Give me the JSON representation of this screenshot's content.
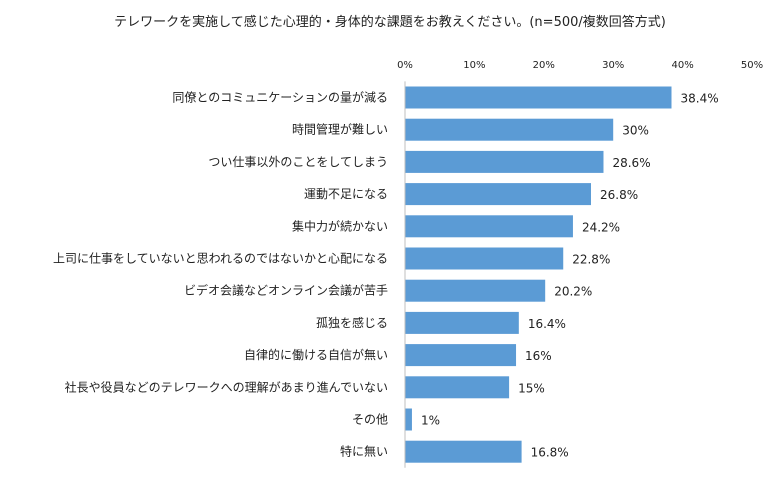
{
  "chart_data": {
    "type": "bar",
    "orientation": "horizontal",
    "title": "テレワークを実施して感じた心理的・身体的な課題をお教えください。(n=500/複数回答方式)",
    "xlim": [
      0,
      50
    ],
    "ticks": [
      {
        "value": 0,
        "label": "0%"
      },
      {
        "value": 10,
        "label": "10%"
      },
      {
        "value": 20,
        "label": "20%"
      },
      {
        "value": 30,
        "label": "30%"
      },
      {
        "value": 40,
        "label": "40%"
      },
      {
        "value": 50,
        "label": "50%"
      }
    ],
    "tick_position": "top",
    "grid": false,
    "bar_color": "#5b9bd5",
    "categories": [
      "同僚とのコミュニケーションの量が減る",
      "時間管理が難しい",
      "つい仕事以外のことをしてしまう",
      "運動不足になる",
      "集中力が続かない",
      "上司に仕事をしていないと思われるのではないかと心配になる",
      "ビデオ会議などオンライン会議が苦手",
      "孤独を感じる",
      "自律的に働ける自信が無い",
      "社長や役員などのテレワークへの理解があまり進んでいない",
      "その他",
      "特に無い"
    ],
    "values": [
      38.4,
      30,
      28.6,
      26.8,
      24.2,
      22.8,
      20.2,
      16.4,
      16,
      15,
      1,
      16.8
    ],
    "value_labels": [
      "38.4%",
      "30%",
      "28.6%",
      "26.8%",
      "24.2%",
      "22.8%",
      "20.2%",
      "16.4%",
      "16%",
      "15%",
      "1%",
      "16.8%"
    ]
  }
}
